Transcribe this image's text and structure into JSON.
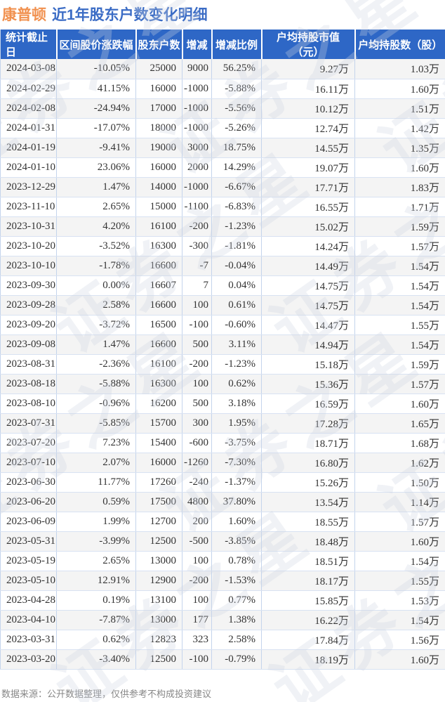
{
  "title": {
    "stock_name": "康普顿",
    "subtitle": "近1年股东户数变化明细"
  },
  "watermark_text": "证券之星",
  "footer_note": "数据来源：公开数据整理，仅供参考不构成投资建议",
  "colors": {
    "up_red": "#e23333",
    "down_green": "#1ca05a",
    "header_bg": "#2e67c6",
    "title_orange": "#f1914f",
    "title_blue": "#3b6cc5"
  },
  "table": {
    "columns": [
      "统计截止日",
      "区间股价涨跌幅",
      "股东户数",
      "增减",
      "增减比例",
      "户均持股市值（元）",
      "户均持股数（股）"
    ],
    "rows": [
      {
        "date": "2024-03-08",
        "pct": "-10.05%",
        "pct_t": "down",
        "holders": "25000",
        "delta": "9000",
        "delta_t": "up",
        "ratio": "56.25%",
        "ratio_t": "up",
        "value": "9.27万",
        "shares": "1.03万"
      },
      {
        "date": "2024-02-29",
        "pct": "41.15%",
        "pct_t": "up",
        "holders": "16000",
        "delta": "-1000",
        "delta_t": "down",
        "ratio": "-5.88%",
        "ratio_t": "down",
        "value": "16.11万",
        "shares": "1.60万"
      },
      {
        "date": "2024-02-08",
        "pct": "-24.94%",
        "pct_t": "down",
        "holders": "17000",
        "delta": "-1000",
        "delta_t": "down",
        "ratio": "-5.56%",
        "ratio_t": "down",
        "value": "10.12万",
        "shares": "1.51万"
      },
      {
        "date": "2024-01-31",
        "pct": "-17.07%",
        "pct_t": "down",
        "holders": "18000",
        "delta": "-1000",
        "delta_t": "down",
        "ratio": "-5.26%",
        "ratio_t": "down",
        "value": "12.74万",
        "shares": "1.42万"
      },
      {
        "date": "2024-01-19",
        "pct": "-9.41%",
        "pct_t": "down",
        "holders": "19000",
        "delta": "3000",
        "delta_t": "up",
        "ratio": "18.75%",
        "ratio_t": "up",
        "value": "14.55万",
        "shares": "1.35万"
      },
      {
        "date": "2024-01-10",
        "pct": "23.06%",
        "pct_t": "up",
        "holders": "16000",
        "delta": "2000",
        "delta_t": "up",
        "ratio": "14.29%",
        "ratio_t": "up",
        "value": "19.07万",
        "shares": "1.60万"
      },
      {
        "date": "2023-12-29",
        "pct": "1.47%",
        "pct_t": "up",
        "holders": "14000",
        "delta": "-1000",
        "delta_t": "down",
        "ratio": "-6.67%",
        "ratio_t": "down",
        "value": "17.71万",
        "shares": "1.83万"
      },
      {
        "date": "2023-11-10",
        "pct": "2.65%",
        "pct_t": "up",
        "holders": "15000",
        "delta": "-1100",
        "delta_t": "down",
        "ratio": "-6.83%",
        "ratio_t": "down",
        "value": "16.55万",
        "shares": "1.71万"
      },
      {
        "date": "2023-10-31",
        "pct": "4.20%",
        "pct_t": "up",
        "holders": "16100",
        "delta": "-200",
        "delta_t": "down",
        "ratio": "-1.23%",
        "ratio_t": "down",
        "value": "15.02万",
        "shares": "1.59万"
      },
      {
        "date": "2023-10-20",
        "pct": "-3.52%",
        "pct_t": "down",
        "holders": "16300",
        "delta": "-300",
        "delta_t": "down",
        "ratio": "-1.81%",
        "ratio_t": "down",
        "value": "14.24万",
        "shares": "1.57万"
      },
      {
        "date": "2023-10-10",
        "pct": "-1.78%",
        "pct_t": "down",
        "holders": "16600",
        "delta": "-7",
        "delta_t": "down",
        "ratio": "-0.04%",
        "ratio_t": "down",
        "value": "14.49万",
        "shares": "1.54万"
      },
      {
        "date": "2023-09-30",
        "pct": "0.00%",
        "pct_t": "flat",
        "holders": "16607",
        "delta": "7",
        "delta_t": "up",
        "ratio": "0.04%",
        "ratio_t": "up",
        "value": "14.75万",
        "shares": "1.54万"
      },
      {
        "date": "2023-09-28",
        "pct": "2.58%",
        "pct_t": "up",
        "holders": "16600",
        "delta": "100",
        "delta_t": "up",
        "ratio": "0.61%",
        "ratio_t": "up",
        "value": "14.75万",
        "shares": "1.54万"
      },
      {
        "date": "2023-09-20",
        "pct": "-3.72%",
        "pct_t": "down",
        "holders": "16500",
        "delta": "-100",
        "delta_t": "down",
        "ratio": "-0.60%",
        "ratio_t": "down",
        "value": "14.47万",
        "shares": "1.55万"
      },
      {
        "date": "2023-09-08",
        "pct": "1.47%",
        "pct_t": "up",
        "holders": "16600",
        "delta": "500",
        "delta_t": "up",
        "ratio": "3.11%",
        "ratio_t": "up",
        "value": "14.94万",
        "shares": "1.54万"
      },
      {
        "date": "2023-08-31",
        "pct": "-2.36%",
        "pct_t": "down",
        "holders": "16100",
        "delta": "-200",
        "delta_t": "down",
        "ratio": "-1.23%",
        "ratio_t": "down",
        "value": "15.18万",
        "shares": "1.59万"
      },
      {
        "date": "2023-08-18",
        "pct": "-5.88%",
        "pct_t": "down",
        "holders": "16300",
        "delta": "100",
        "delta_t": "up",
        "ratio": "0.62%",
        "ratio_t": "up",
        "value": "15.36万",
        "shares": "1.57万"
      },
      {
        "date": "2023-08-10",
        "pct": "-0.96%",
        "pct_t": "down",
        "holders": "16200",
        "delta": "500",
        "delta_t": "up",
        "ratio": "3.18%",
        "ratio_t": "up",
        "value": "16.59万",
        "shares": "1.60万"
      },
      {
        "date": "2023-07-31",
        "pct": "-5.85%",
        "pct_t": "down",
        "holders": "15700",
        "delta": "300",
        "delta_t": "up",
        "ratio": "1.95%",
        "ratio_t": "up",
        "value": "17.28万",
        "shares": "1.65万"
      },
      {
        "date": "2023-07-20",
        "pct": "7.23%",
        "pct_t": "up",
        "holders": "15400",
        "delta": "-600",
        "delta_t": "down",
        "ratio": "-3.75%",
        "ratio_t": "down",
        "value": "18.71万",
        "shares": "1.68万"
      },
      {
        "date": "2023-07-10",
        "pct": "2.07%",
        "pct_t": "up",
        "holders": "16000",
        "delta": "-1260",
        "delta_t": "down",
        "ratio": "-7.30%",
        "ratio_t": "down",
        "value": "16.80万",
        "shares": "1.62万"
      },
      {
        "date": "2023-06-30",
        "pct": "11.77%",
        "pct_t": "up",
        "holders": "17260",
        "delta": "-240",
        "delta_t": "down",
        "ratio": "-1.37%",
        "ratio_t": "down",
        "value": "15.26万",
        "shares": "1.50万"
      },
      {
        "date": "2023-06-20",
        "pct": "0.59%",
        "pct_t": "up",
        "holders": "17500",
        "delta": "4800",
        "delta_t": "up",
        "ratio": "37.80%",
        "ratio_t": "up",
        "value": "13.54万",
        "shares": "1.14万"
      },
      {
        "date": "2023-06-09",
        "pct": "1.99%",
        "pct_t": "up",
        "holders": "12700",
        "delta": "200",
        "delta_t": "up",
        "ratio": "1.60%",
        "ratio_t": "up",
        "value": "18.55万",
        "shares": "1.57万"
      },
      {
        "date": "2023-05-31",
        "pct": "-3.99%",
        "pct_t": "down",
        "holders": "12500",
        "delta": "-500",
        "delta_t": "down",
        "ratio": "-3.85%",
        "ratio_t": "down",
        "value": "18.48万",
        "shares": "1.60万"
      },
      {
        "date": "2023-05-19",
        "pct": "2.65%",
        "pct_t": "up",
        "holders": "13000",
        "delta": "100",
        "delta_t": "up",
        "ratio": "0.78%",
        "ratio_t": "up",
        "value": "18.51万",
        "shares": "1.54万"
      },
      {
        "date": "2023-05-10",
        "pct": "12.91%",
        "pct_t": "up",
        "holders": "12900",
        "delta": "-200",
        "delta_t": "down",
        "ratio": "-1.53%",
        "ratio_t": "down",
        "value": "18.17万",
        "shares": "1.55万"
      },
      {
        "date": "2023-04-28",
        "pct": "0.19%",
        "pct_t": "up",
        "holders": "13100",
        "delta": "100",
        "delta_t": "up",
        "ratio": "0.77%",
        "ratio_t": "up",
        "value": "15.85万",
        "shares": "1.53万"
      },
      {
        "date": "2023-04-10",
        "pct": "-7.87%",
        "pct_t": "down",
        "holders": "13000",
        "delta": "177",
        "delta_t": "up",
        "ratio": "1.38%",
        "ratio_t": "up",
        "value": "16.22万",
        "shares": "1.54万"
      },
      {
        "date": "2023-03-31",
        "pct": "0.62%",
        "pct_t": "up",
        "holders": "12823",
        "delta": "323",
        "delta_t": "up",
        "ratio": "2.58%",
        "ratio_t": "up",
        "value": "17.84万",
        "shares": "1.56万"
      },
      {
        "date": "2023-03-20",
        "pct": "-3.40%",
        "pct_t": "down",
        "holders": "12500",
        "delta": "-100",
        "delta_t": "down",
        "ratio": "-0.79%",
        "ratio_t": "down",
        "value": "18.19万",
        "shares": "1.60万"
      }
    ]
  }
}
